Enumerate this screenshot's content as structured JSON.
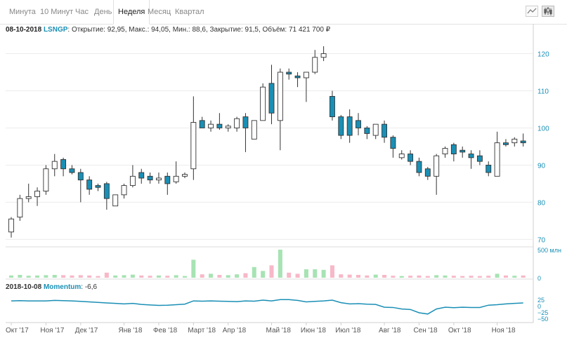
{
  "tabs": [
    {
      "label": "Минута",
      "active": false
    },
    {
      "label": "10 Минут",
      "active": false
    },
    {
      "label": "Час",
      "active": false
    },
    {
      "label": "День",
      "active": false
    },
    {
      "label": "Неделя",
      "active": true
    },
    {
      "label": "Месяц",
      "active": false
    },
    {
      "label": "Квартал",
      "active": false
    }
  ],
  "toolbar": {
    "line_icon": "line-chart-icon",
    "candle_icon": "candlestick-chart-icon"
  },
  "info": {
    "date": "08-10-2018",
    "ticker": "LSNGP",
    "text": ": Открытие: 92,95, Макс.: 94,05, Мин.: 88,6, Закрытие: 91,5, Объём: 71 421 700 ₽"
  },
  "momentum": {
    "date": "2018-10-08",
    "name": "Momentum",
    "value": ": -6,6"
  },
  "colors": {
    "up_fill": "#ffffff",
    "down_fill": "#1a8fb5",
    "candle_stroke": "#333333",
    "vol_up": "#a7e3b3",
    "vol_down": "#f7b8c8",
    "momentum_line": "#1a8fb5",
    "axis_text": "#1a8fb5"
  },
  "chart_data": {
    "type": "candlestick",
    "price_axis": {
      "range": [
        68,
        125
      ],
      "ticks": [
        70,
        80,
        90,
        100,
        110,
        120
      ],
      "labels": [
        "70",
        "80",
        "90",
        "100",
        "110",
        "120"
      ]
    },
    "volume_axis": {
      "ticks": [
        0,
        500
      ],
      "labels": [
        "0",
        "500 млн"
      ]
    },
    "momentum_axis": {
      "ticks": [
        25,
        0,
        -25,
        -50
      ],
      "labels": [
        "25",
        "0",
        "−25",
        "−50"
      ]
    },
    "x_axis_labels": [
      {
        "label": "Окт '17",
        "i": 0
      },
      {
        "label": "Ноя '17",
        "i": 4
      },
      {
        "label": "Дек '17",
        "i": 8
      },
      {
        "label": "Янв '18",
        "i": 13
      },
      {
        "label": "Фев '18",
        "i": 17
      },
      {
        "label": "Март '18",
        "i": 21
      },
      {
        "label": "Апр '18",
        "i": 25
      },
      {
        "label": "Май '18",
        "i": 30
      },
      {
        "label": "Июн '18",
        "i": 34
      },
      {
        "label": "Июл '18",
        "i": 38
      },
      {
        "label": "Авг '18",
        "i": 43
      },
      {
        "label": "Сен '18",
        "i": 47
      },
      {
        "label": "Окт '18",
        "i": 51
      },
      {
        "label": "Ноя '18",
        "i": 56
      }
    ],
    "candles": [
      {
        "o": 72,
        "h": 76,
        "l": 70.5,
        "c": 75.5,
        "v": 40
      },
      {
        "o": 76,
        "h": 82,
        "l": 75,
        "c": 81,
        "v": 50
      },
      {
        "o": 81,
        "h": 85,
        "l": 80,
        "c": 81.5,
        "v": 35
      },
      {
        "o": 81.5,
        "h": 84,
        "l": 79,
        "c": 83,
        "v": 40
      },
      {
        "o": 83,
        "h": 90,
        "l": 82,
        "c": 89,
        "v": 45
      },
      {
        "o": 89,
        "h": 93,
        "l": 87,
        "c": 91,
        "v": 50
      },
      {
        "o": 91.5,
        "h": 92,
        "l": 87,
        "c": 89,
        "v": 45
      },
      {
        "o": 89,
        "h": 90,
        "l": 87.5,
        "c": 88,
        "v": 40
      },
      {
        "o": 88,
        "h": 89,
        "l": 80,
        "c": 86,
        "v": 45
      },
      {
        "o": 86,
        "h": 87,
        "l": 82,
        "c": 83.5,
        "v": 40
      },
      {
        "o": 84.5,
        "h": 85,
        "l": 83,
        "c": 84,
        "v": 30
      },
      {
        "o": 85,
        "h": 85.5,
        "l": 78,
        "c": 81,
        "v": 90
      },
      {
        "o": 79,
        "h": 82,
        "l": 79,
        "c": 82,
        "v": 40
      },
      {
        "o": 82,
        "h": 85,
        "l": 81,
        "c": 84.5,
        "v": 45
      },
      {
        "o": 84.5,
        "h": 90,
        "l": 84,
        "c": 87,
        "v": 55
      },
      {
        "o": 88,
        "h": 89,
        "l": 85,
        "c": 86.5,
        "v": 40
      },
      {
        "o": 87,
        "h": 88,
        "l": 85,
        "c": 86,
        "v": 35
      },
      {
        "o": 86,
        "h": 88,
        "l": 85,
        "c": 86.5,
        "v": 40
      },
      {
        "o": 87,
        "h": 88,
        "l": 82,
        "c": 85,
        "v": 35
      },
      {
        "o": 85.5,
        "h": 91,
        "l": 85,
        "c": 87,
        "v": 45
      },
      {
        "o": 87,
        "h": 88,
        "l": 86.5,
        "c": 87.5,
        "v": 30
      },
      {
        "o": 89,
        "h": 108.5,
        "l": 86,
        "c": 101.5,
        "v": 320
      },
      {
        "o": 102,
        "h": 103,
        "l": 100,
        "c": 100,
        "v": 60
      },
      {
        "o": 100,
        "h": 102,
        "l": 99,
        "c": 101,
        "v": 70
      },
      {
        "o": 101,
        "h": 104,
        "l": 99.5,
        "c": 100,
        "v": 50
      },
      {
        "o": 100,
        "h": 101,
        "l": 99,
        "c": 100.5,
        "v": 45
      },
      {
        "o": 100,
        "h": 103,
        "l": 99,
        "c": 102.5,
        "v": 60
      },
      {
        "o": 103,
        "h": 104,
        "l": 93.5,
        "c": 100,
        "v": 80
      },
      {
        "o": 97,
        "h": 102,
        "l": 97,
        "c": 102,
        "v": 190
      },
      {
        "o": 102,
        "h": 112,
        "l": 102,
        "c": 111,
        "v": 120
      },
      {
        "o": 112,
        "h": 117,
        "l": 101,
        "c": 104,
        "v": 220
      },
      {
        "o": 102,
        "h": 116,
        "l": 94,
        "c": 115,
        "v": 500
      },
      {
        "o": 115,
        "h": 116,
        "l": 113,
        "c": 114.5,
        "v": 90
      },
      {
        "o": 114,
        "h": 115,
        "l": 111,
        "c": 113.5,
        "v": 70
      },
      {
        "o": 113.5,
        "h": 115,
        "l": 107,
        "c": 115,
        "v": 150
      },
      {
        "o": 115,
        "h": 121,
        "l": 114.5,
        "c": 119,
        "v": 150
      },
      {
        "o": 119,
        "h": 122,
        "l": 118,
        "c": 120,
        "v": 140
      },
      {
        "o": 108.5,
        "h": 110,
        "l": 102,
        "c": 103,
        "v": 220
      },
      {
        "o": 103,
        "h": 103.5,
        "l": 97,
        "c": 98,
        "v": 60
      },
      {
        "o": 103,
        "h": 105,
        "l": 96,
        "c": 98,
        "v": 55
      },
      {
        "o": 102,
        "h": 104,
        "l": 98,
        "c": 100,
        "v": 50
      },
      {
        "o": 100,
        "h": 100.5,
        "l": 97,
        "c": 98.5,
        "v": 40
      },
      {
        "o": 98,
        "h": 101,
        "l": 97,
        "c": 101,
        "v": 55
      },
      {
        "o": 101,
        "h": 102,
        "l": 96,
        "c": 97.5,
        "v": 50
      },
      {
        "o": 97.5,
        "h": 98,
        "l": 92,
        "c": 94.5,
        "v": 35
      },
      {
        "o": 92,
        "h": 94,
        "l": 91.5,
        "c": 93,
        "v": 30
      },
      {
        "o": 93,
        "h": 94,
        "l": 90,
        "c": 91,
        "v": 35
      },
      {
        "o": 91,
        "h": 92,
        "l": 87,
        "c": 88,
        "v": 40
      },
      {
        "o": 89,
        "h": 89.5,
        "l": 86,
        "c": 87,
        "v": 30
      },
      {
        "o": 87,
        "h": 93,
        "l": 82,
        "c": 92.5,
        "v": 45
      },
      {
        "o": 93,
        "h": 95,
        "l": 92,
        "c": 94.5,
        "v": 40
      },
      {
        "o": 95.5,
        "h": 96,
        "l": 91,
        "c": 93,
        "v": 35
      },
      {
        "o": 94,
        "h": 95,
        "l": 92,
        "c": 93.5,
        "v": 30
      },
      {
        "o": 93,
        "h": 94,
        "l": 89,
        "c": 92,
        "v": 35
      },
      {
        "o": 92.5,
        "h": 94,
        "l": 90,
        "c": 91,
        "v": 30
      },
      {
        "o": 90,
        "h": 91,
        "l": 87,
        "c": 88,
        "v": 35
      },
      {
        "o": 87,
        "h": 99,
        "l": 87,
        "c": 96,
        "v": 70
      },
      {
        "o": 96,
        "h": 97,
        "l": 95,
        "c": 95.5,
        "v": 40
      },
      {
        "o": 96,
        "h": 97.5,
        "l": 95,
        "c": 97,
        "v": 35
      },
      {
        "o": 96.5,
        "h": 98.5,
        "l": 95,
        "c": 96,
        "v": 40
      }
    ],
    "momentum": [
      22,
      23,
      22,
      22,
      22,
      24,
      23,
      22,
      20,
      18,
      16,
      14,
      12,
      10,
      12,
      8,
      6,
      4,
      5,
      7,
      9,
      22,
      21,
      22,
      21,
      20,
      19,
      22,
      21,
      25,
      22,
      27,
      27,
      24,
      18,
      20,
      22,
      25,
      15,
      10,
      11,
      9,
      8,
      -3,
      -4,
      -10,
      -12,
      -25,
      -30,
      -10,
      -3,
      -5,
      -3,
      -4,
      -4,
      5,
      7,
      10,
      12,
      14
    ]
  }
}
